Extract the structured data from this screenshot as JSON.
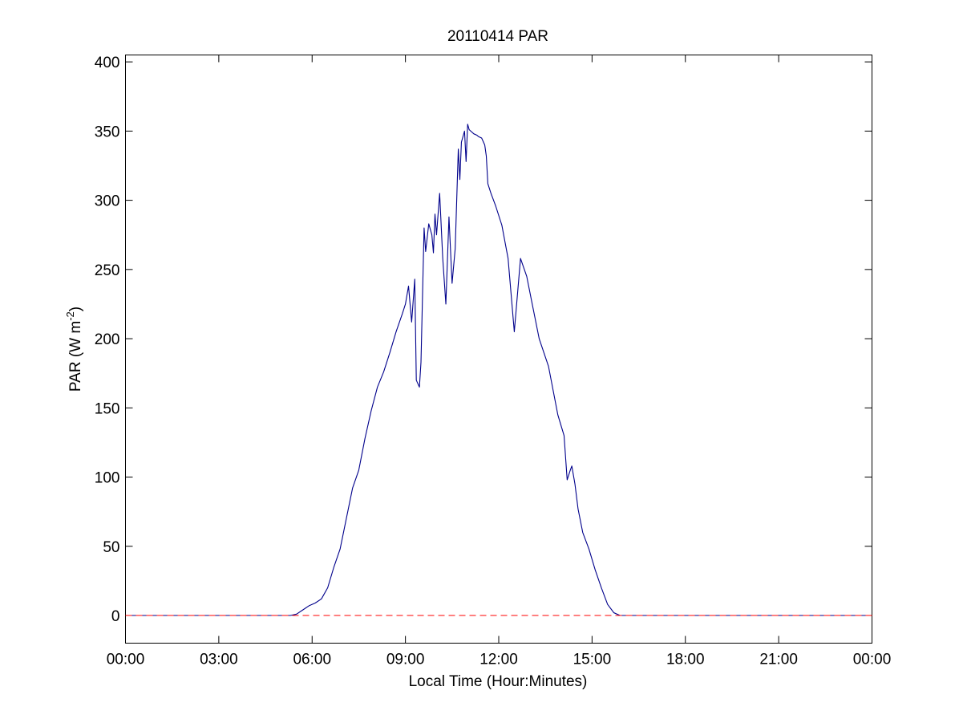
{
  "chart_data": {
    "type": "line",
    "title": "20110414 PAR",
    "xlabel": "Local Time (Hour:Minutes)",
    "ylabel_main": "PAR (W m",
    "ylabel_sup": "-2",
    "ylabel_close": ")",
    "xlim": [
      0,
      24
    ],
    "ylim": [
      -20,
      405
    ],
    "x_ticks": [
      0,
      3,
      6,
      9,
      12,
      15,
      18,
      21,
      24
    ],
    "x_tick_labels": [
      "00:00",
      "03:00",
      "06:00",
      "09:00",
      "12:00",
      "15:00",
      "18:00",
      "21:00",
      "00:00"
    ],
    "y_ticks": [
      0,
      50,
      100,
      150,
      200,
      250,
      300,
      350,
      400
    ],
    "y_tick_labels": [
      "0",
      "50",
      "100",
      "150",
      "200",
      "250",
      "300",
      "350",
      "400"
    ],
    "grid": false,
    "colors": {
      "series": "#00008b",
      "baseline": "#ff0000"
    },
    "series": [
      {
        "style": "solid",
        "x": [
          0,
          5.3,
          5.5,
          5.7,
          5.9,
          6.1,
          6.3,
          6.5,
          6.7,
          6.9,
          7.1,
          7.3,
          7.5,
          7.7,
          7.9,
          8.1,
          8.3,
          8.5,
          8.7,
          8.9,
          9.0,
          9.1,
          9.2,
          9.3,
          9.35,
          9.45,
          9.5,
          9.6,
          9.65,
          9.75,
          9.85,
          9.9,
          9.95,
          10.0,
          10.1,
          10.2,
          10.3,
          10.4,
          10.5,
          10.6,
          10.7,
          10.75,
          10.8,
          10.9,
          10.95,
          11.0,
          11.05,
          11.2,
          11.3,
          11.35,
          11.45,
          11.55,
          11.6,
          11.65,
          11.75,
          11.9,
          12.1,
          12.3,
          12.5,
          12.7,
          12.9,
          13.05,
          13.3,
          13.6,
          13.9,
          14.1,
          14.2,
          14.3,
          14.35,
          14.45,
          14.55,
          14.7,
          14.9,
          15.1,
          15.3,
          15.5,
          15.7,
          15.9,
          16.1,
          16.2,
          16.3,
          16.4,
          16.5,
          16.7,
          16.9,
          17.1,
          17.3,
          17.5,
          17.7,
          17.9,
          18.1,
          18.3,
          18.5,
          18.7,
          24
        ],
        "y": [
          0,
          0,
          1,
          4,
          7,
          9,
          12,
          20,
          35,
          48,
          70,
          92,
          105,
          128,
          148,
          165,
          176,
          190,
          205,
          218,
          225,
          238,
          212,
          243,
          170,
          165,
          183,
          280,
          263,
          283,
          275,
          262,
          290,
          275,
          305,
          258,
          225,
          288,
          240,
          265,
          337,
          315,
          342,
          350,
          328,
          355,
          351,
          348,
          347,
          346,
          345,
          340,
          332,
          312,
          305,
          296,
          282,
          258,
          205,
          258,
          245,
          228,
          200,
          180,
          145,
          130,
          98,
          105,
          108,
          95,
          77,
          60,
          48,
          33,
          20,
          8,
          2,
          0,
          0,
          0,
          0,
          0,
          0,
          0,
          0,
          0,
          0,
          0,
          0,
          0,
          0,
          0,
          0,
          0,
          0
        ]
      },
      {
        "style": "dashed",
        "x": [
          0,
          24
        ],
        "y": [
          0,
          0
        ]
      }
    ]
  }
}
